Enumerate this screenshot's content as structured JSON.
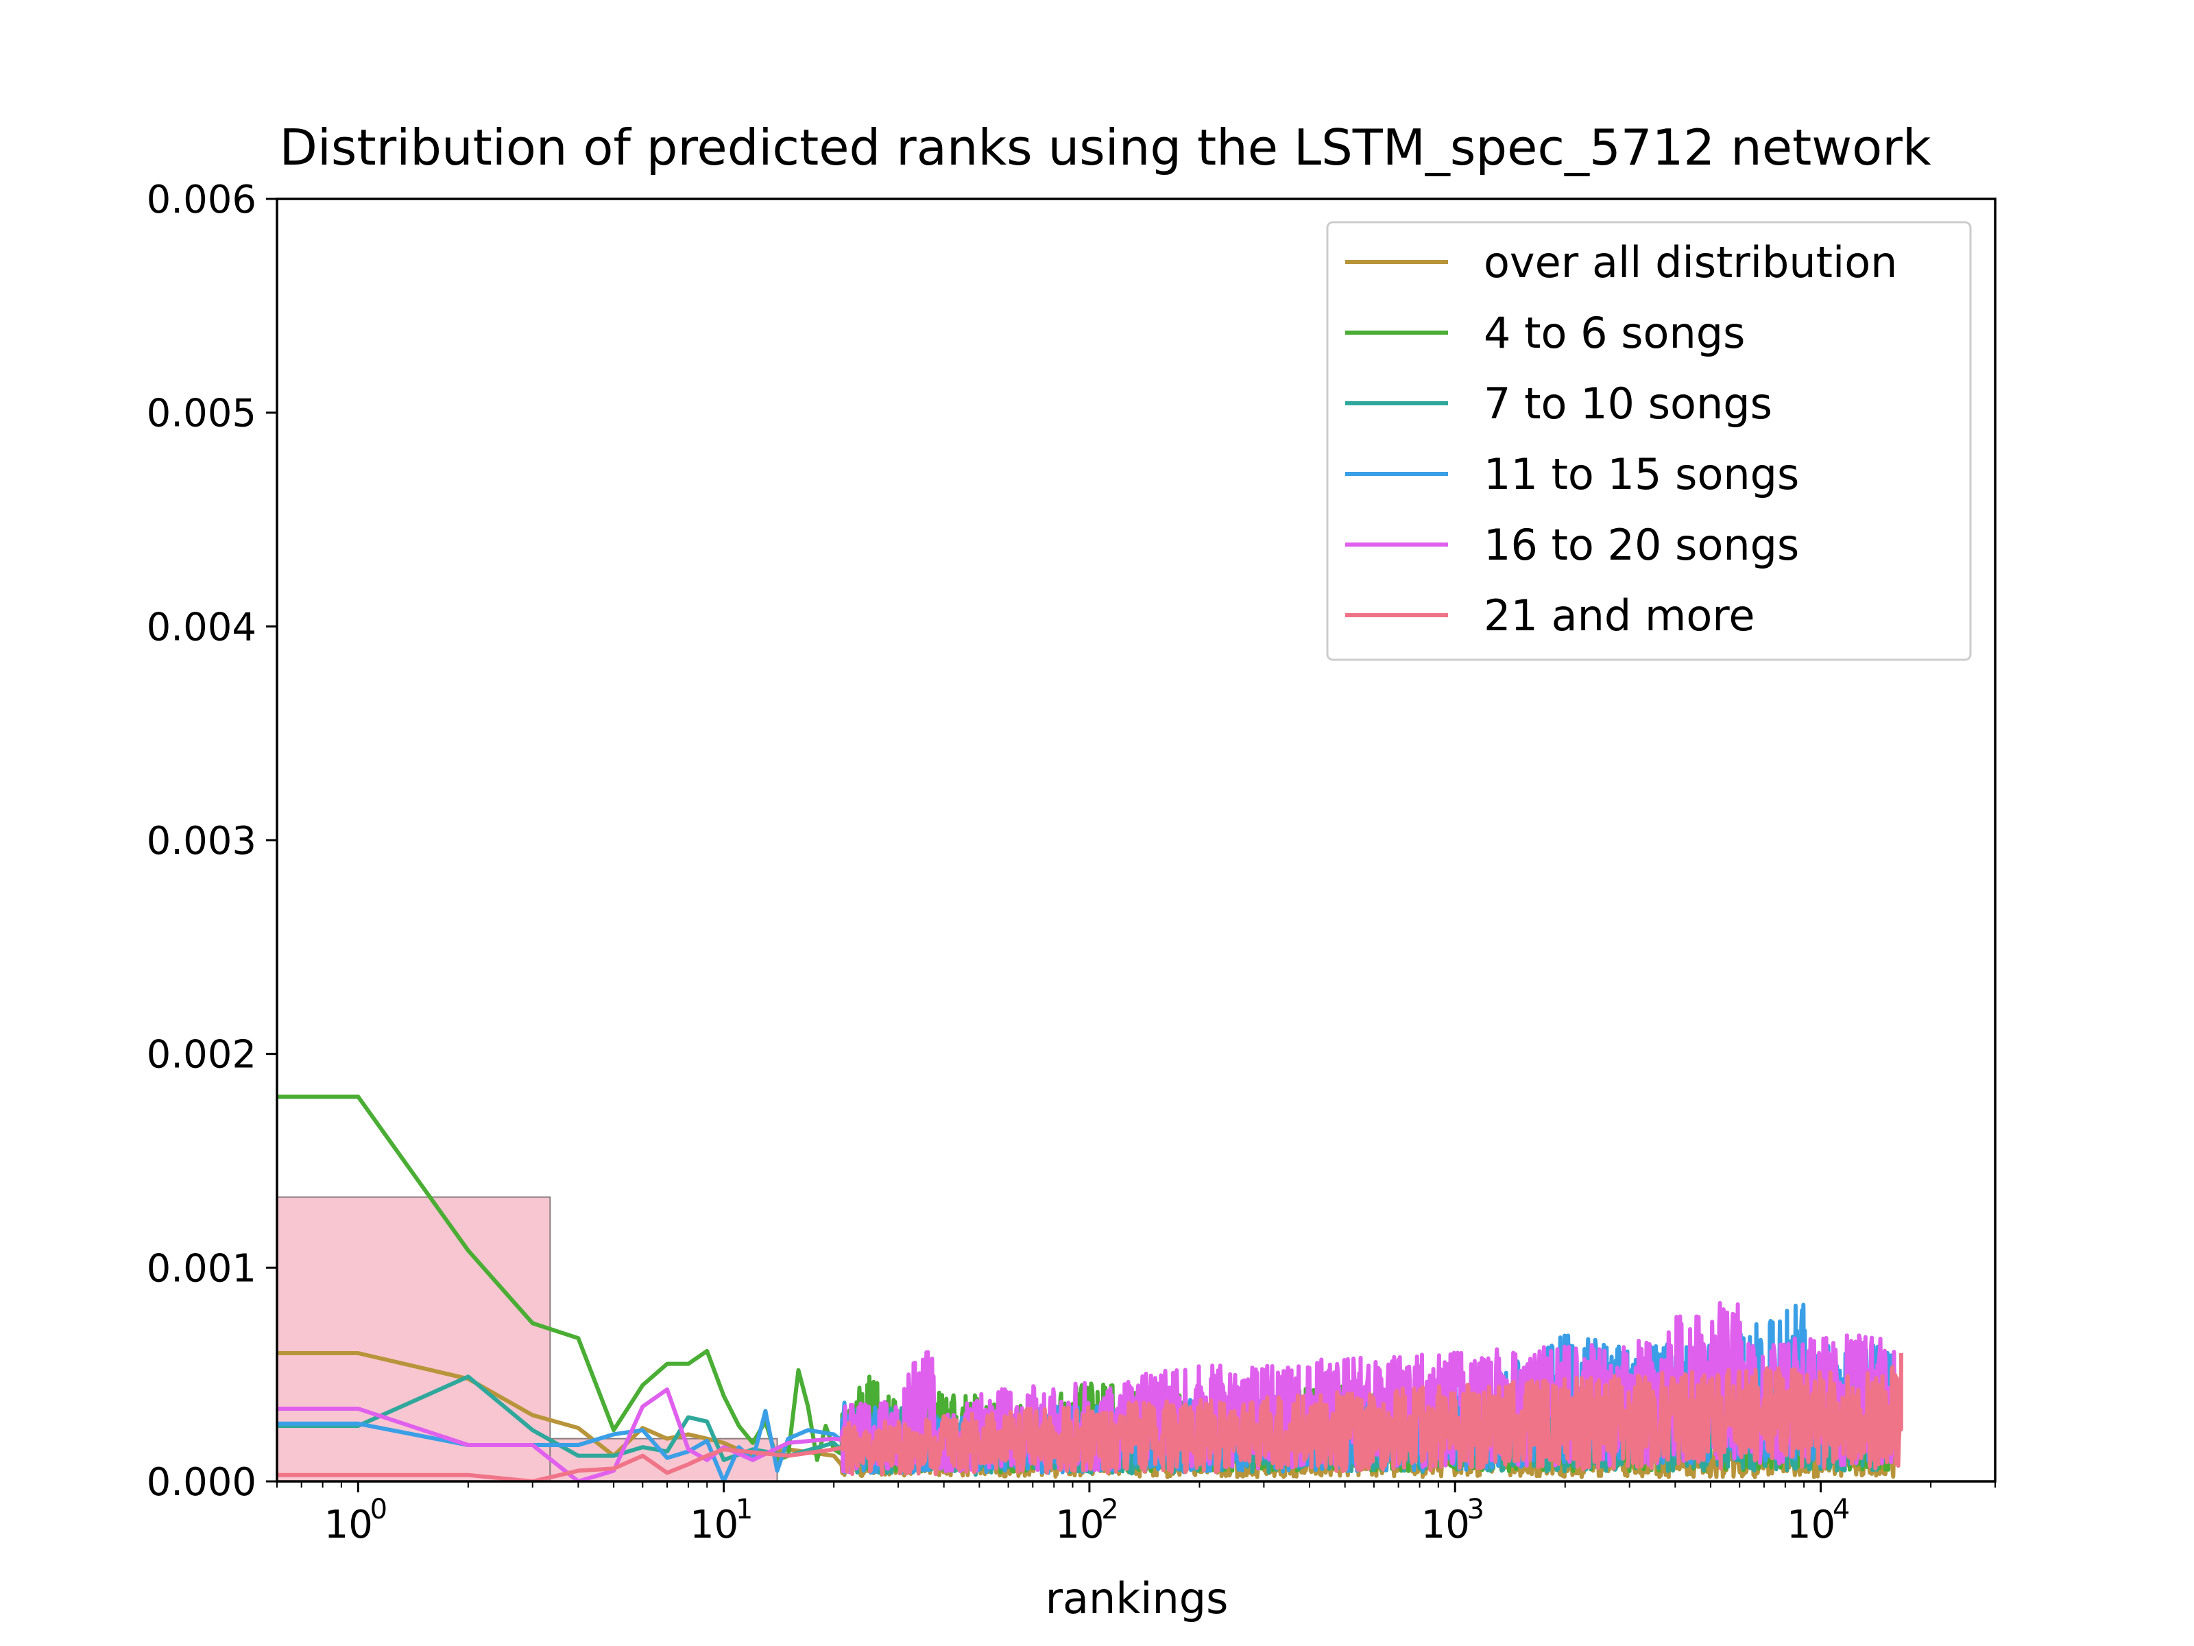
{
  "chart_data": {
    "type": "line",
    "title": "Distribution of predicted ranks using the LSTM_spec_5712 network",
    "xlabel": "rankings",
    "ylabel": "",
    "xscale": "log",
    "xlim": [
      0.6,
      30000
    ],
    "ylim": [
      0,
      0.006
    ],
    "grid": false,
    "legend_position": "top-right",
    "yticks": [
      "0.000",
      "0.001",
      "0.002",
      "0.003",
      "0.004",
      "0.005",
      "0.006"
    ],
    "xticks": [
      {
        "value": 1,
        "base": "10",
        "exp": "0"
      },
      {
        "value": 10,
        "base": "10",
        "exp": "1"
      },
      {
        "value": 100,
        "base": "10",
        "exp": "2"
      },
      {
        "value": 1000,
        "base": "10",
        "exp": "3"
      },
      {
        "value": 10000,
        "base": "10",
        "exp": "4"
      }
    ],
    "histogram": {
      "color": "#f4a0b0",
      "bars": [
        {
          "x0": 0.6,
          "x1": 3.35,
          "height": 0.00133
        },
        {
          "x0": 3.35,
          "x1": 14,
          "height": 0.0002
        }
      ]
    },
    "series": [
      {
        "name": "over all distribution",
        "color": "#b8943a",
        "x": [
          0.6,
          1,
          2,
          3,
          4,
          5,
          6,
          7,
          8,
          9,
          10,
          12,
          15,
          20,
          30,
          50,
          100,
          300,
          1000,
          3000,
          10000,
          16000
        ],
        "y": [
          0.0006,
          0.0006,
          0.00048,
          0.00031,
          0.00025,
          0.00012,
          0.00025,
          0.0002,
          0.00022,
          0.0002,
          0.00018,
          0.00012,
          0.00015,
          0.00012,
          0.00012,
          0.00011,
          0.0001,
          0.0001,
          0.0001,
          0.0001,
          0.0001,
          0.0001
        ]
      },
      {
        "name": "4 to 6 songs",
        "color": "#4aad34",
        "x": [
          0.6,
          1,
          2,
          3,
          4,
          5,
          6,
          7,
          8,
          9,
          10,
          11,
          12,
          13,
          14,
          15,
          16,
          17,
          18,
          19,
          20,
          25,
          30,
          40,
          60,
          100,
          200,
          500,
          1200,
          1210,
          1220,
          3000,
          10000,
          16000
        ],
        "y": [
          0.0018,
          0.0018,
          0.00108,
          0.00074,
          0.00067,
          0.00024,
          0.00045,
          0.00055,
          0.00055,
          0.00061,
          0.0004,
          0.00026,
          0.00018,
          0.00028,
          0.0001,
          0.00012,
          0.00052,
          0.00035,
          0.0001,
          0.00026,
          0.00015,
          0.00028,
          0.0002,
          0.00025,
          0.0002,
          0.00026,
          0.00022,
          0.00025,
          0.00023,
          0.00055,
          0.0002,
          0.00024,
          0.00024,
          0.00024
        ]
      },
      {
        "name": "7 to 10 songs",
        "color": "#2fa89c",
        "x": [
          0.6,
          1,
          2,
          3,
          4,
          5,
          6,
          7,
          8,
          9,
          10,
          12,
          15,
          20,
          30,
          50,
          100,
          300,
          1000,
          3000,
          10000,
          16000
        ],
        "y": [
          0.00026,
          0.00026,
          0.00049,
          0.00024,
          0.00012,
          0.00012,
          0.00016,
          0.00014,
          0.0003,
          0.00028,
          0.0001,
          0.00015,
          0.00012,
          0.00018,
          0.0002,
          0.00015,
          0.00018,
          0.0002,
          0.00022,
          0.00024,
          0.00025,
          0.00025
        ]
      },
      {
        "name": "11 to 15 songs",
        "color": "#3a9fe6",
        "x": [
          0.6,
          1,
          2,
          3,
          4,
          5,
          6,
          7,
          8,
          9,
          10,
          11,
          12,
          13,
          14,
          15,
          17,
          20,
          30,
          50,
          100,
          300,
          1000,
          2000,
          3000,
          5000,
          9000,
          9100,
          16000
        ],
        "y": [
          0.00027,
          0.00027,
          0.00017,
          0.00017,
          0.00017,
          0.00022,
          0.00024,
          0.00011,
          0.00014,
          0.00019,
          0.0,
          0.00016,
          0.0001,
          0.00033,
          5e-05,
          0.0002,
          0.00024,
          0.00022,
          0.00018,
          0.00018,
          0.0002,
          0.00022,
          0.00026,
          0.00038,
          0.00036,
          0.00036,
          0.0005,
          0.00035,
          0.00036
        ]
      },
      {
        "name": "16 to 20 songs",
        "color": "#e060ee",
        "x": [
          0.6,
          1,
          2,
          3,
          4,
          5,
          6,
          7,
          8,
          9,
          10,
          12,
          15,
          20,
          30,
          37,
          38,
          50,
          100,
          200,
          500,
          1000,
          3000,
          6000,
          6100,
          10000,
          16000
        ],
        "y": [
          0.00034,
          0.00034,
          0.00017,
          0.00017,
          0.0,
          5e-05,
          0.00035,
          0.00043,
          0.00015,
          0.0001,
          0.00016,
          0.0001,
          0.00018,
          0.0002,
          0.00022,
          0.00042,
          0.00015,
          0.00024,
          0.00026,
          0.0003,
          0.00032,
          0.00034,
          0.00036,
          0.00052,
          0.00036,
          0.00038,
          0.00038
        ]
      },
      {
        "name": "21 and more",
        "color": "#f07488",
        "x": [
          0.6,
          1,
          2,
          3,
          4,
          5,
          6,
          7,
          8,
          9,
          10,
          15,
          20,
          30,
          50,
          100,
          300,
          1000,
          3000,
          10000,
          16500,
          16600
        ],
        "y": [
          3e-05,
          3e-05,
          3e-05,
          0.0,
          5e-05,
          6e-05,
          0.00012,
          4e-05,
          8e-05,
          0.00012,
          0.00015,
          0.00012,
          0.00015,
          0.00016,
          0.00018,
          0.0002,
          0.00022,
          0.00025,
          0.00028,
          0.0003,
          0.0003,
          0.0006
        ]
      }
    ]
  }
}
